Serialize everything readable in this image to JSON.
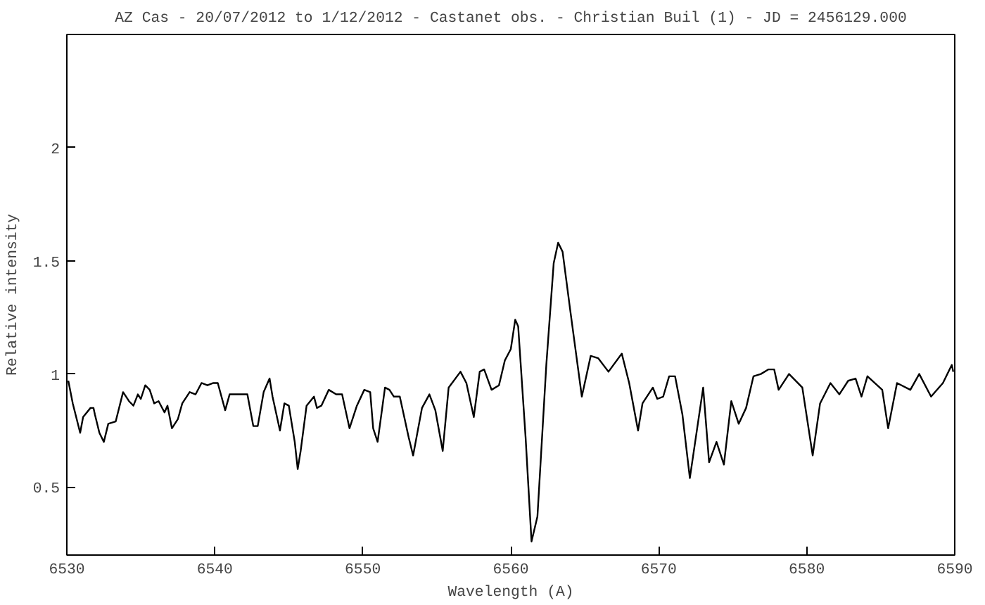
{
  "chart_data": {
    "type": "line",
    "title": "AZ Cas - 20/07/2012 to 1/12/2012 - Castanet obs. - Christian Buil (1) - JD = 2456129.000",
    "xlabel": "Wavelength (A)",
    "ylabel": "Relative intensity",
    "xlim": [
      6530,
      6590
    ],
    "ylim": [
      0.2,
      2.5
    ],
    "xticks": [
      6530,
      6540,
      6550,
      6560,
      6570,
      6580,
      6590
    ],
    "yticks": [
      0.5,
      1,
      1.5,
      2
    ],
    "grid": false,
    "marker": "none",
    "line_style": "solid",
    "series": [
      {
        "color": "#000000",
        "x": [
          6530.1,
          6530.4,
          6530.9,
          6531.1,
          6531.6,
          6531.8,
          6531.9,
          6532.2,
          6532.5,
          6532.8,
          6533.3,
          6533.8,
          6534.2,
          6534.5,
          6534.8,
          6535.0,
          6535.3,
          6535.6,
          6535.9,
          6536.2,
          6536.6,
          6536.8,
          6537.1,
          6537.5,
          6537.8,
          6538.3,
          6538.7,
          6539.1,
          6539.5,
          6539.9,
          6540.2,
          6540.7,
          6541.0,
          6541.5,
          6541.9,
          6542.2,
          6542.6,
          6542.9,
          6543.3,
          6543.7,
          6543.9,
          6544.4,
          6544.7,
          6545.0,
          6545.4,
          6545.6,
          6545.8,
          6546.2,
          6546.7,
          6546.9,
          6547.2,
          6547.7,
          6548.2,
          6548.6,
          6549.1,
          6549.6,
          6550.1,
          6550.5,
          6550.7,
          6551.0,
          6551.5,
          6551.8,
          6552.1,
          6552.5,
          6553.1,
          6553.4,
          6554.0,
          6554.5,
          6554.9,
          6555.4,
          6555.8,
          6556.6,
          6557.0,
          6557.5,
          6557.9,
          6558.2,
          6558.7,
          6559.2,
          6559.6,
          6560.0,
          6560.3,
          6560.5,
          6561.0,
          6561.4,
          6561.8,
          6562.4,
          6562.9,
          6563.2,
          6563.5,
          6564.0,
          6564.8,
          6565.4,
          6565.9,
          6566.6,
          6567.5,
          6568.0,
          6568.6,
          6568.9,
          6569.6,
          6569.9,
          6570.3,
          6570.7,
          6571.1,
          6571.6,
          6572.1,
          6573.0,
          6573.4,
          6573.9,
          6574.4,
          6574.9,
          6575.4,
          6575.9,
          6576.4,
          6576.9,
          6577.4,
          6577.8,
          6578.1,
          6578.8,
          6579.7,
          6580.4,
          6580.9,
          6581.6,
          6582.2,
          6582.8,
          6583.3,
          6583.7,
          6584.1,
          6585.1,
          6585.5,
          6586.1,
          6587.0,
          6587.6,
          6588.4,
          6589.2,
          6589.8,
          6589.9
        ],
        "values": [
          0.97,
          0.87,
          0.74,
          0.81,
          0.85,
          0.85,
          0.82,
          0.74,
          0.7,
          0.78,
          0.79,
          0.92,
          0.88,
          0.86,
          0.91,
          0.89,
          0.95,
          0.93,
          0.87,
          0.88,
          0.83,
          0.86,
          0.76,
          0.8,
          0.87,
          0.92,
          0.91,
          0.96,
          0.95,
          0.96,
          0.96,
          0.84,
          0.91,
          0.91,
          0.91,
          0.91,
          0.77,
          0.77,
          0.92,
          0.98,
          0.9,
          0.75,
          0.87,
          0.86,
          0.7,
          0.58,
          0.66,
          0.86,
          0.9,
          0.85,
          0.86,
          0.93,
          0.91,
          0.91,
          0.76,
          0.86,
          0.93,
          0.92,
          0.76,
          0.7,
          0.94,
          0.93,
          0.9,
          0.9,
          0.72,
          0.64,
          0.85,
          0.91,
          0.84,
          0.66,
          0.94,
          1.01,
          0.96,
          0.81,
          1.01,
          1.02,
          0.93,
          0.95,
          1.06,
          1.11,
          1.24,
          1.21,
          0.72,
          0.26,
          0.37,
          1.04,
          1.49,
          1.58,
          1.54,
          1.29,
          0.9,
          1.08,
          1.07,
          1.01,
          1.09,
          0.96,
          0.75,
          0.87,
          0.94,
          0.89,
          0.9,
          0.99,
          0.99,
          0.82,
          0.54,
          0.94,
          0.61,
          0.7,
          0.6,
          0.88,
          0.78,
          0.85,
          0.99,
          1.0,
          1.02,
          1.02,
          0.93,
          1.0,
          0.94,
          0.64,
          0.87,
          0.96,
          0.91,
          0.97,
          0.98,
          0.9,
          0.99,
          0.93,
          0.76,
          0.96,
          0.93,
          1.0,
          0.9,
          0.96,
          1.04,
          1.01
        ]
      }
    ]
  }
}
